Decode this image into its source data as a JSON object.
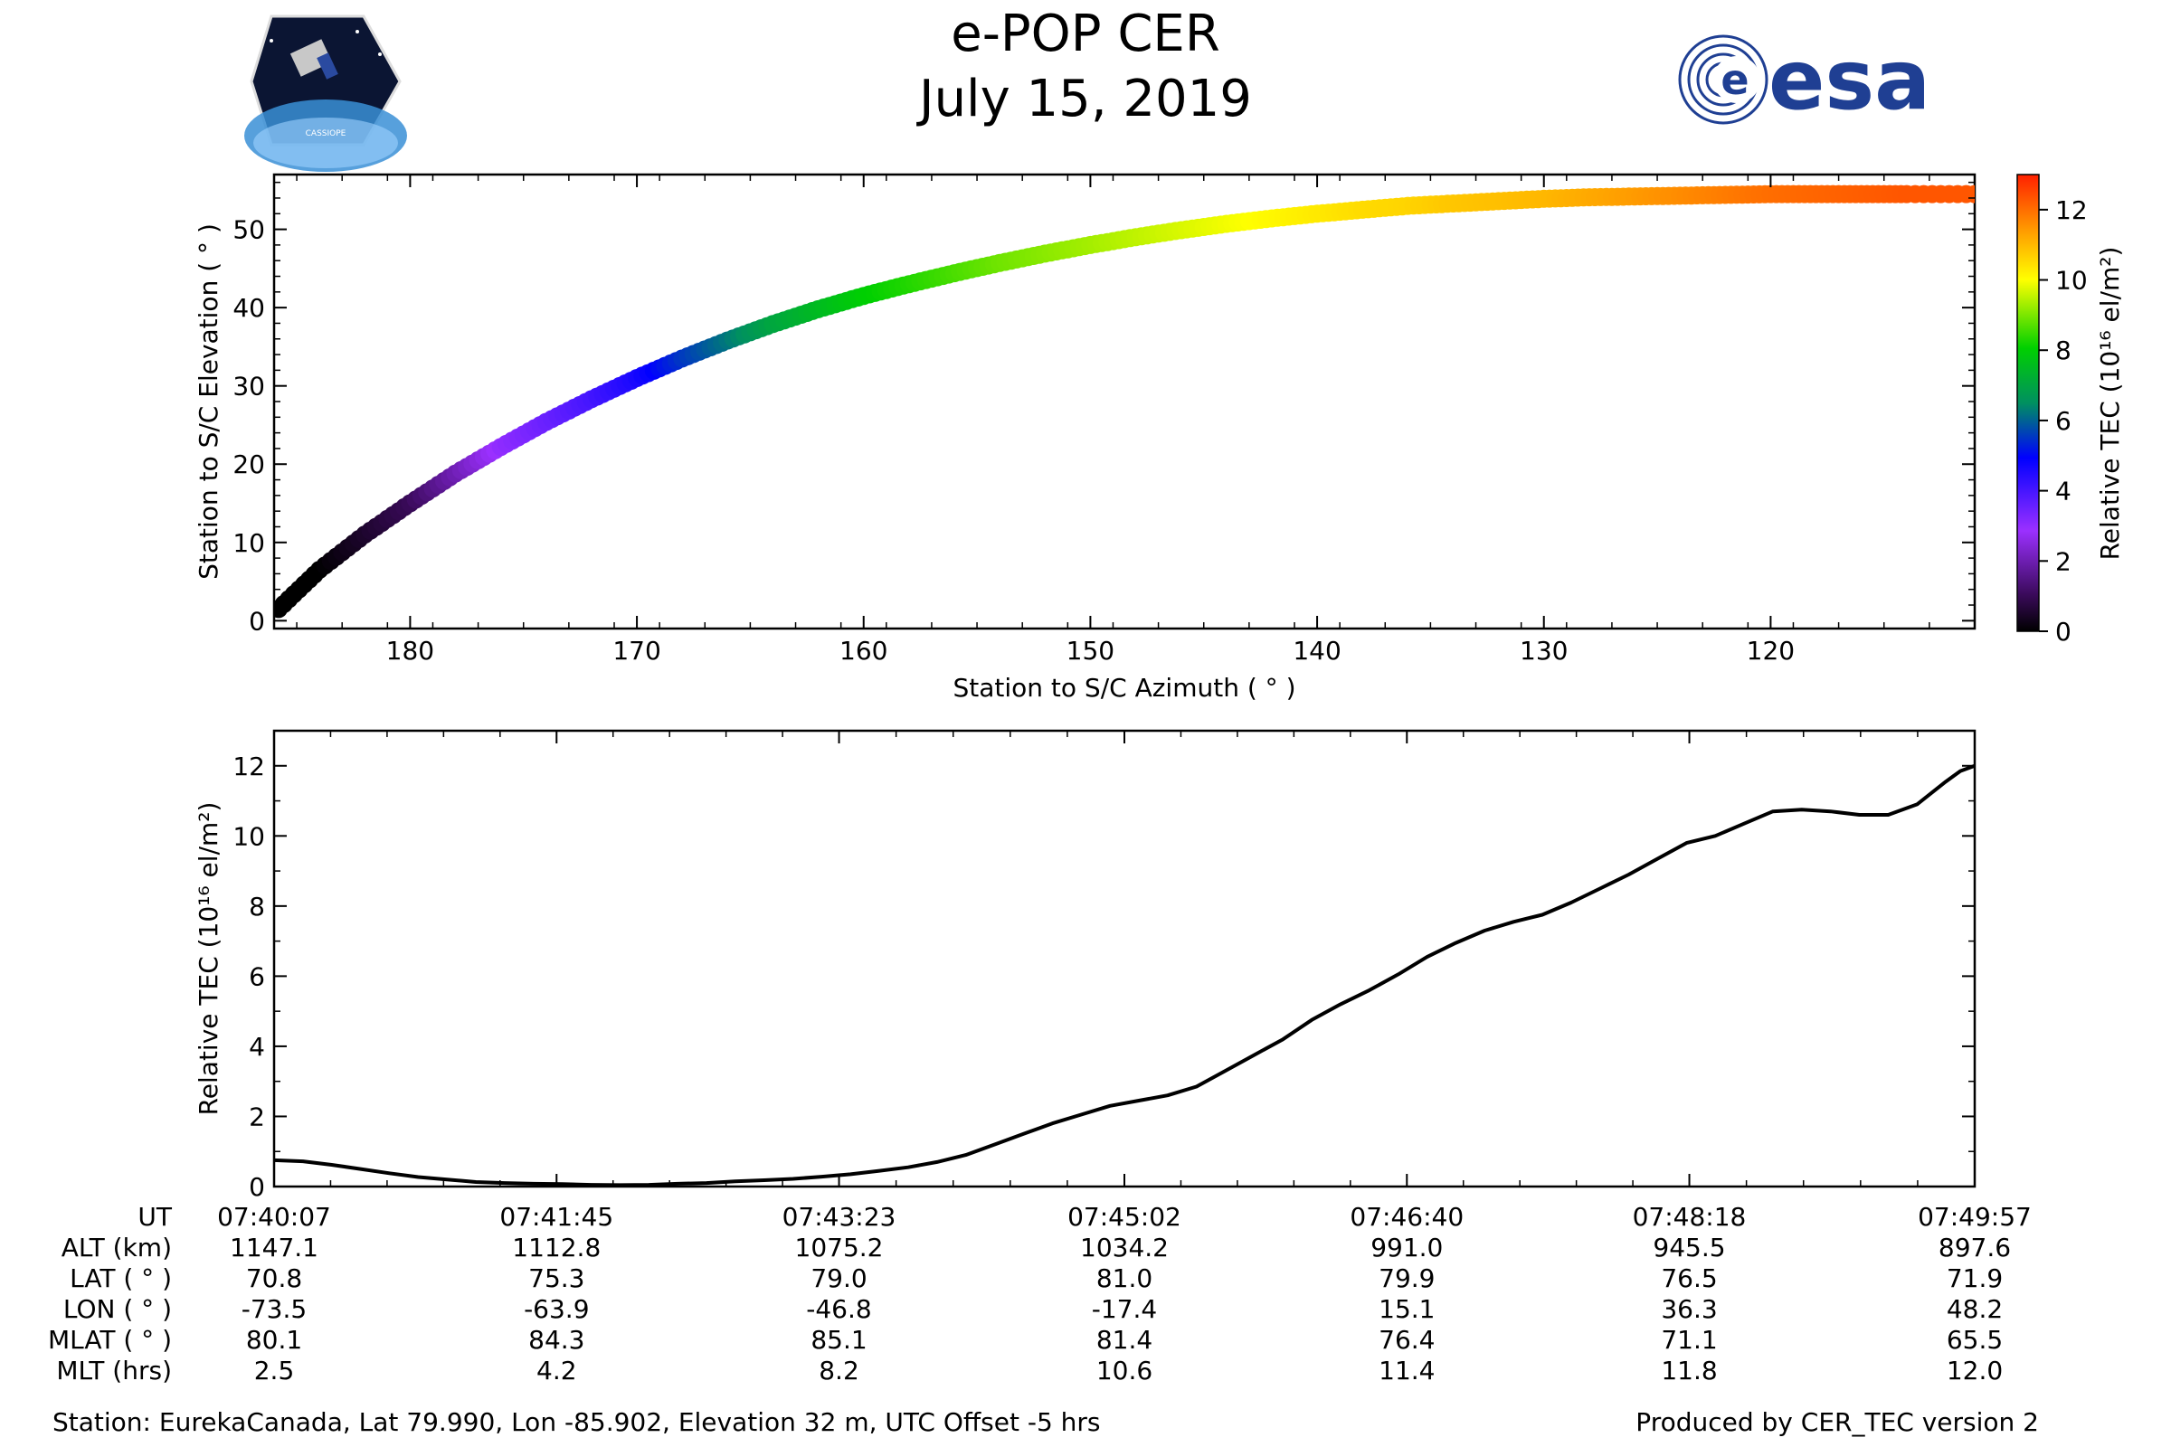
{
  "header": {
    "title": "e-POP CER",
    "date": "July 15, 2019",
    "logo_left": {
      "name": "CASSIOPE",
      "colors": {
        "bg": "#0b1533",
        "earth": "#3a8fd6"
      }
    },
    "logo_right": {
      "text": "esa",
      "color": "#1f3f93"
    }
  },
  "colors": {
    "line": "#000000",
    "axis": "#000000"
  },
  "chart_data": [
    {
      "type": "scatter",
      "title": "",
      "xlabel": "Station to S/C Azimuth ( ° )",
      "ylabel": "Station to S/C Elevation ( ° )",
      "xlim": [
        186,
        111
      ],
      "ylim": [
        -1,
        57
      ],
      "xticks": [
        180,
        170,
        160,
        150,
        140,
        130,
        120
      ],
      "yticks": [
        0,
        10,
        20,
        30,
        40,
        50
      ],
      "x": [
        185.8,
        184,
        182,
        180,
        178,
        176,
        174,
        172,
        170,
        168,
        166,
        164,
        162,
        160,
        158,
        156,
        154,
        152,
        150,
        148,
        146,
        144,
        142,
        140,
        138,
        136,
        134,
        132,
        130,
        128,
        126,
        124,
        122,
        120,
        118,
        116,
        114,
        111
      ],
      "y": [
        1.5,
        6.5,
        11.0,
        15.0,
        18.8,
        22.2,
        25.4,
        28.3,
        31.0,
        33.5,
        35.8,
        37.9,
        39.8,
        41.5,
        43.0,
        44.4,
        45.7,
        46.9,
        48.0,
        49.0,
        49.9,
        50.7,
        51.4,
        52.0,
        52.5,
        53.0,
        53.3,
        53.6,
        53.9,
        54.1,
        54.2,
        54.3,
        54.4,
        54.5,
        54.5,
        54.5,
        54.5,
        54.5
      ],
      "tec": [
        0.0,
        0.0,
        0.5,
        1.0,
        2.0,
        3.0,
        3.5,
        4.0,
        4.6,
        5.5,
        6.2,
        7.0,
        7.5,
        8.0,
        8.3,
        8.6,
        8.9,
        9.1,
        9.3,
        9.5,
        9.7,
        9.9,
        10.1,
        10.3,
        10.5,
        10.6,
        10.8,
        10.9,
        11.0,
        11.2,
        11.4,
        11.6,
        11.8,
        12.0,
        12.1,
        12.2,
        12.3,
        12.3
      ],
      "colorbar": {
        "label": "Relative TEC (10¹⁶ el/m²)",
        "range": [
          0,
          13
        ],
        "ticks": [
          0,
          2,
          4,
          6,
          8,
          10,
          12
        ]
      }
    },
    {
      "type": "line",
      "title": "",
      "xlabel": "",
      "ylabel": "Relative TEC (10¹⁶ el/m²)",
      "xlim": [
        0,
        590
      ],
      "ylim": [
        0,
        13
      ],
      "yticks": [
        0,
        2,
        4,
        6,
        8,
        10,
        12
      ],
      "xtick_seconds": [
        0,
        98,
        196,
        295,
        393,
        491,
        590
      ],
      "x": [
        0,
        10,
        20,
        30,
        40,
        50,
        60,
        70,
        80,
        90,
        100,
        110,
        120,
        130,
        140,
        150,
        160,
        170,
        180,
        190,
        200,
        210,
        220,
        230,
        240,
        250,
        260,
        270,
        280,
        290,
        300,
        310,
        320,
        330,
        340,
        350,
        360,
        370,
        380,
        390,
        400,
        410,
        420,
        430,
        440,
        450,
        460,
        470,
        480,
        490,
        500,
        510,
        520,
        530,
        540,
        550,
        560,
        570,
        580,
        585,
        590
      ],
      "y": [
        0.75,
        0.72,
        0.62,
        0.5,
        0.38,
        0.27,
        0.2,
        0.13,
        0.1,
        0.08,
        0.07,
        0.05,
        0.04,
        0.05,
        0.08,
        0.1,
        0.15,
        0.18,
        0.22,
        0.28,
        0.35,
        0.45,
        0.55,
        0.7,
        0.9,
        1.2,
        1.5,
        1.8,
        2.05,
        2.3,
        2.45,
        2.6,
        2.85,
        3.3,
        3.75,
        4.2,
        4.75,
        5.2,
        5.6,
        6.05,
        6.55,
        6.95,
        7.3,
        7.55,
        7.75,
        8.1,
        8.5,
        8.9,
        9.35,
        9.8,
        10.0,
        10.35,
        10.7,
        10.75,
        10.7,
        10.6,
        10.6,
        10.9,
        11.55,
        11.85,
        12.0
      ]
    }
  ],
  "table": {
    "row_labels": [
      "UT",
      "ALT (km)",
      "LAT ( ° )",
      "LON ( ° )",
      "MLAT ( ° )",
      "MLT (hrs)"
    ],
    "columns": [
      [
        "07:40:07",
        "1147.1",
        "70.8",
        "-73.5",
        "80.1",
        "2.5"
      ],
      [
        "07:41:45",
        "1112.8",
        "75.3",
        "-63.9",
        "84.3",
        "4.2"
      ],
      [
        "07:43:23",
        "1075.2",
        "79.0",
        "-46.8",
        "85.1",
        "8.2"
      ],
      [
        "07:45:02",
        "1034.2",
        "81.0",
        "-17.4",
        "81.4",
        "10.6"
      ],
      [
        "07:46:40",
        "991.0",
        "79.9",
        "15.1",
        "76.4",
        "11.4"
      ],
      [
        "07:48:18",
        "945.5",
        "76.5",
        "36.3",
        "71.1",
        "11.8"
      ],
      [
        "07:49:57",
        "897.6",
        "71.9",
        "48.2",
        "65.5",
        "12.0"
      ]
    ]
  },
  "footer": {
    "station": "Station: EurekaCanada, Lat 79.990, Lon -85.902, Elevation 32 m, UTC Offset -5 hrs",
    "produced": "Produced by CER_TEC version 2"
  }
}
